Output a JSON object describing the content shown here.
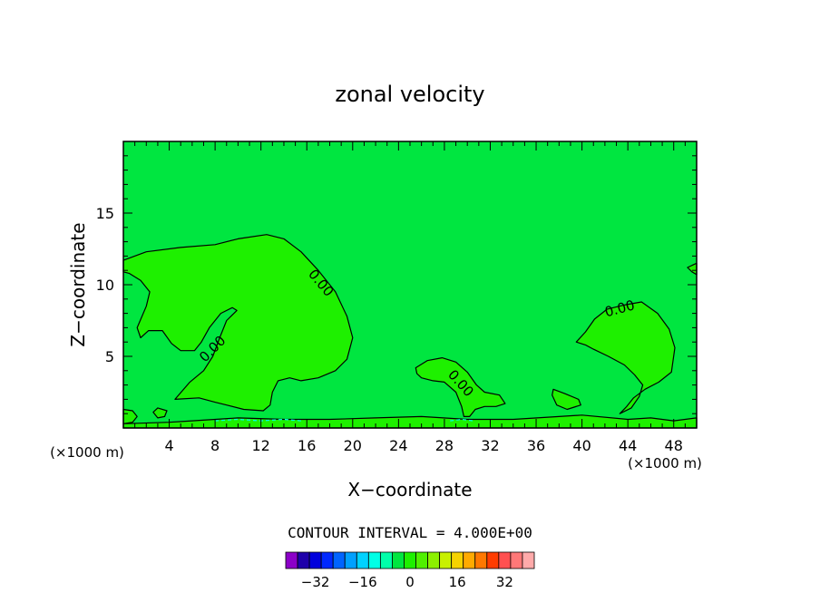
{
  "chart_data": {
    "type": "contour",
    "title": "zonal velocity",
    "xlabel": "X−coordinate",
    "ylabel": "Z−coordinate",
    "x_unit": "(×1000 m)",
    "y_unit": "(×1000 m)",
    "xlim": [
      0,
      50
    ],
    "ylim": [
      0,
      20
    ],
    "x_ticks": [
      4,
      8,
      12,
      16,
      20,
      24,
      28,
      32,
      36,
      40,
      44,
      48
    ],
    "y_ticks": [
      5,
      10,
      15
    ],
    "contour_interval_text": "CONTOUR INTERVAL = 4.000E+00",
    "contour_label": "0.00",
    "background_color": "#00e640",
    "region_color": "#1ef000",
    "colorbar": {
      "tick_labels": [
        "−32",
        "−16",
        "0",
        "16",
        "32"
      ],
      "tick_values": [
        -32,
        -16,
        0,
        16,
        32
      ],
      "colors": [
        "#8c00c8",
        "#1e00aa",
        "#0000dc",
        "#0028ff",
        "#0064ff",
        "#00a0ff",
        "#00d2ff",
        "#00ffe6",
        "#00ffaa",
        "#00e640",
        "#1ef000",
        "#50f000",
        "#8cf000",
        "#c8f000",
        "#f5d200",
        "#ffaa00",
        "#ff7800",
        "#ff3c00",
        "#ff5050",
        "#ff7878",
        "#ffaaaa"
      ]
    },
    "regions": [
      {
        "name": "upper-left-positive",
        "points": [
          [
            0,
            11.7
          ],
          [
            2,
            12.3
          ],
          [
            5,
            12.6
          ],
          [
            8,
            12.8
          ],
          [
            10,
            13.2
          ],
          [
            12.5,
            13.5
          ],
          [
            14,
            13.2
          ],
          [
            15.5,
            12.3
          ],
          [
            17,
            11
          ],
          [
            18.5,
            9.5
          ],
          [
            19.5,
            7.8
          ],
          [
            20,
            6.3
          ],
          [
            19.5,
            4.8
          ],
          [
            18.5,
            4
          ],
          [
            17,
            3.5
          ],
          [
            15.5,
            3.3
          ],
          [
            14.5,
            3.5
          ],
          [
            13.5,
            3.3
          ],
          [
            13,
            2.5
          ],
          [
            12.8,
            1.6
          ],
          [
            12.2,
            1.2
          ],
          [
            10.5,
            1.3
          ],
          [
            9,
            1.6
          ],
          [
            8,
            1.8
          ],
          [
            6.6,
            2.1
          ],
          [
            4.5,
            2
          ],
          [
            5.8,
            3.2
          ],
          [
            7,
            4
          ],
          [
            7.8,
            5
          ],
          [
            8.4,
            6.3
          ],
          [
            9,
            7.5
          ],
          [
            9.9,
            8.2
          ],
          [
            9.5,
            8.4
          ],
          [
            8.5,
            8
          ],
          [
            7.5,
            7
          ],
          [
            6.8,
            6
          ],
          [
            6.2,
            5.4
          ],
          [
            5,
            5.4
          ],
          [
            4.2,
            5.9
          ],
          [
            3.4,
            6.8
          ],
          [
            2.2,
            6.8
          ],
          [
            1.5,
            6.3
          ],
          [
            1.2,
            7
          ],
          [
            2,
            8.5
          ],
          [
            2.3,
            9.5
          ],
          [
            1.5,
            10.3
          ],
          [
            0.5,
            10.8
          ],
          [
            0,
            10.9
          ]
        ]
      },
      {
        "name": "right-positive",
        "points": [
          [
            39.5,
            6
          ],
          [
            40.3,
            6.7
          ],
          [
            41.1,
            7.6
          ],
          [
            42.2,
            8.3
          ],
          [
            43.8,
            8.6
          ],
          [
            45.2,
            8.8
          ],
          [
            46.6,
            8
          ],
          [
            47.6,
            6.9
          ],
          [
            48.1,
            5.6
          ],
          [
            47.8,
            3.9
          ],
          [
            46.7,
            3.2
          ],
          [
            45.5,
            2.7
          ],
          [
            44.5,
            2.1
          ],
          [
            43.9,
            1.5
          ],
          [
            43.3,
            1
          ],
          [
            44.3,
            1.4
          ],
          [
            45,
            2.2
          ],
          [
            45.3,
            3
          ],
          [
            44.6,
            3.7
          ],
          [
            43.7,
            4.4
          ],
          [
            42.3,
            5
          ],
          [
            41,
            5.5
          ],
          [
            40.3,
            5.8
          ]
        ]
      },
      {
        "name": "middle-positive",
        "points": [
          [
            25.5,
            4.2
          ],
          [
            26.5,
            4.7
          ],
          [
            27.8,
            4.9
          ],
          [
            29,
            4.6
          ],
          [
            30,
            3.9
          ],
          [
            30.8,
            3
          ],
          [
            31.5,
            2.5
          ],
          [
            32.8,
            2.3
          ],
          [
            33.3,
            1.7
          ],
          [
            32.5,
            1.5
          ],
          [
            31.5,
            1.5
          ],
          [
            30.7,
            1.3
          ],
          [
            30.2,
            0.8
          ],
          [
            29.7,
            0.8
          ],
          [
            29.5,
            1.5
          ],
          [
            29,
            2.5
          ],
          [
            28,
            3.2
          ],
          [
            27,
            3.3
          ],
          [
            26,
            3.5
          ],
          [
            25.6,
            3.8
          ]
        ]
      },
      {
        "name": "small-patch-a",
        "points": [
          [
            37.5,
            2.7
          ],
          [
            38.5,
            2.4
          ],
          [
            39.7,
            2
          ],
          [
            39.9,
            1.6
          ],
          [
            38.7,
            1.3
          ],
          [
            37.8,
            1.6
          ],
          [
            37.4,
            2.3
          ]
        ]
      },
      {
        "name": "right-edge-patch",
        "points": [
          [
            50,
            11.5
          ],
          [
            49.2,
            11.2
          ],
          [
            49.6,
            10.9
          ],
          [
            50,
            10.7
          ]
        ]
      },
      {
        "name": "bottom-left-patch",
        "points": [
          [
            0,
            1.3
          ],
          [
            0.8,
            1.2
          ],
          [
            1.2,
            0.8
          ],
          [
            0.8,
            0.4
          ],
          [
            0,
            0.3
          ]
        ]
      },
      {
        "name": "small-patch-b",
        "points": [
          [
            3,
            1.4
          ],
          [
            3.8,
            1.2
          ],
          [
            3.6,
            0.8
          ],
          [
            3,
            0.7
          ],
          [
            2.6,
            1.1
          ]
        ]
      },
      {
        "name": "bottom-strip",
        "points": [
          [
            0,
            0
          ],
          [
            50,
            0
          ],
          [
            50,
            0.7
          ],
          [
            48,
            0.5
          ],
          [
            46,
            0.7
          ],
          [
            44,
            0.6
          ],
          [
            40,
            0.9
          ],
          [
            38,
            0.8
          ],
          [
            34,
            0.6
          ],
          [
            30,
            0.6
          ],
          [
            26,
            0.8
          ],
          [
            22,
            0.7
          ],
          [
            18,
            0.6
          ],
          [
            14,
            0.6
          ],
          [
            10,
            0.7
          ],
          [
            6,
            0.5
          ],
          [
            4,
            0.4
          ],
          [
            0,
            0.3
          ]
        ]
      }
    ],
    "negative_lines": [
      {
        "name": "negative-contour-1",
        "points": [
          [
            8,
            0.5
          ],
          [
            10,
            0.6
          ],
          [
            12,
            0.5
          ],
          [
            14,
            0.6
          ],
          [
            15.5,
            0.5
          ]
        ]
      },
      {
        "name": "negative-contour-2",
        "points": [
          [
            28.5,
            0.5
          ],
          [
            29.5,
            0.6
          ],
          [
            30.5,
            0.5
          ]
        ]
      }
    ],
    "contour_labels": [
      {
        "x": 17.2,
        "y": 10.1,
        "angle": 50
      },
      {
        "x": 7.8,
        "y": 5.5,
        "angle": -45
      },
      {
        "x": 29.4,
        "y": 3.1,
        "angle": 48
      },
      {
        "x": 43.3,
        "y": 8.3,
        "angle": -15
      }
    ]
  }
}
